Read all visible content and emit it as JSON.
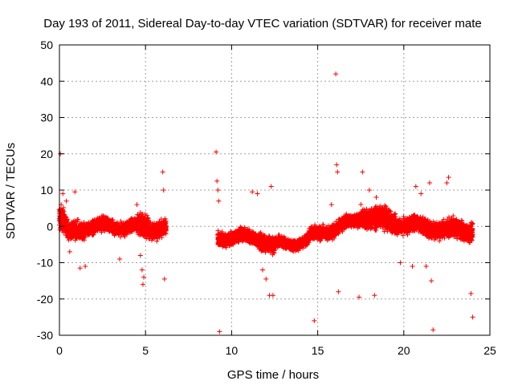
{
  "chart_data": {
    "type": "scatter",
    "title": "Day 193 of 2011, Sidereal Day-to-day VTEC variation (SDTVAR) for receiver mate",
    "xlabel": "GPS time / hours",
    "ylabel": "SDTVAR / TECUs",
    "xlim": [
      0,
      25
    ],
    "ylim": [
      -30,
      50
    ],
    "x_ticks": [
      "0",
      "5",
      "10",
      "15",
      "20",
      "25"
    ],
    "y_ticks": [
      "-30",
      "-20",
      "-10",
      "0",
      "10",
      "20",
      "30",
      "40",
      "50"
    ],
    "grid": true,
    "marker": "+",
    "color": "#ff0000",
    "dense_segments": [
      {
        "x": [
          0.0,
          0.5
        ],
        "center": [
          3,
          -1.5
        ],
        "spread": 4.5
      },
      {
        "x": [
          0.5,
          1.5
        ],
        "center": [
          -2,
          -0.5
        ],
        "spread": 3.5
      },
      {
        "x": [
          1.5,
          4.5
        ],
        "center": [
          0,
          0
        ],
        "spread": 2.5
      },
      {
        "x": [
          4.5,
          5.2
        ],
        "center": [
          0,
          0
        ],
        "spread": 4.0
      },
      {
        "x": [
          5.2,
          6.2
        ],
        "center": [
          -1,
          0
        ],
        "spread": 3.0
      },
      {
        "x": [
          9.2,
          11.5
        ],
        "center": [
          -3,
          -3
        ],
        "spread": 2.5
      },
      {
        "x": [
          11.5,
          12.5
        ],
        "center": [
          -3,
          -6
        ],
        "spread": 3.0
      },
      {
        "x": [
          12.5,
          14.5
        ],
        "center": [
          -5,
          -4
        ],
        "spread": 2.0
      },
      {
        "x": [
          14.5,
          17.5
        ],
        "center": [
          -3,
          2
        ],
        "spread": 2.5
      },
      {
        "x": [
          17.5,
          19.5
        ],
        "center": [
          3,
          1
        ],
        "spread": 4.0
      },
      {
        "x": [
          19.5,
          22.5
        ],
        "center": [
          1,
          -1
        ],
        "spread": 3.0
      },
      {
        "x": [
          22.5,
          24.0
        ],
        "center": [
          -1,
          -1
        ],
        "spread": 3.5
      }
    ],
    "outliers": [
      [
        0.05,
        20
      ],
      [
        0.1,
        6
      ],
      [
        0.2,
        9
      ],
      [
        0.4,
        7
      ],
      [
        0.6,
        -7
      ],
      [
        0.9,
        9.5
      ],
      [
        1.2,
        -11.5
      ],
      [
        1.5,
        -11
      ],
      [
        3.5,
        -9
      ],
      [
        4.5,
        6
      ],
      [
        4.7,
        -8
      ],
      [
        4.8,
        -12
      ],
      [
        4.85,
        -16
      ],
      [
        4.9,
        -14
      ],
      [
        6.0,
        15
      ],
      [
        6.05,
        10
      ],
      [
        6.1,
        -14.5
      ],
      [
        9.1,
        20.5
      ],
      [
        9.15,
        12.5
      ],
      [
        9.2,
        10
      ],
      [
        9.25,
        7
      ],
      [
        9.3,
        -29
      ],
      [
        11.2,
        9.5
      ],
      [
        11.5,
        9
      ],
      [
        11.8,
        -12
      ],
      [
        12.0,
        -14.5
      ],
      [
        12.2,
        -19
      ],
      [
        12.3,
        11
      ],
      [
        12.4,
        -19
      ],
      [
        14.8,
        -26
      ],
      [
        15.3,
        0.5
      ],
      [
        15.8,
        6
      ],
      [
        16.05,
        42
      ],
      [
        16.1,
        17
      ],
      [
        16.15,
        15
      ],
      [
        16.2,
        -18
      ],
      [
        17.4,
        -19.5
      ],
      [
        17.6,
        15
      ],
      [
        18.0,
        10
      ],
      [
        18.3,
        -19
      ],
      [
        18.4,
        8
      ],
      [
        19.8,
        -10
      ],
      [
        20.5,
        -11
      ],
      [
        20.7,
        11
      ],
      [
        21.0,
        9
      ],
      [
        21.3,
        -11
      ],
      [
        21.5,
        12
      ],
      [
        21.6,
        -15
      ],
      [
        21.7,
        -28.5
      ],
      [
        22.5,
        12
      ],
      [
        22.6,
        13.5
      ],
      [
        23.9,
        -18.5
      ],
      [
        24.0,
        -25
      ]
    ]
  }
}
